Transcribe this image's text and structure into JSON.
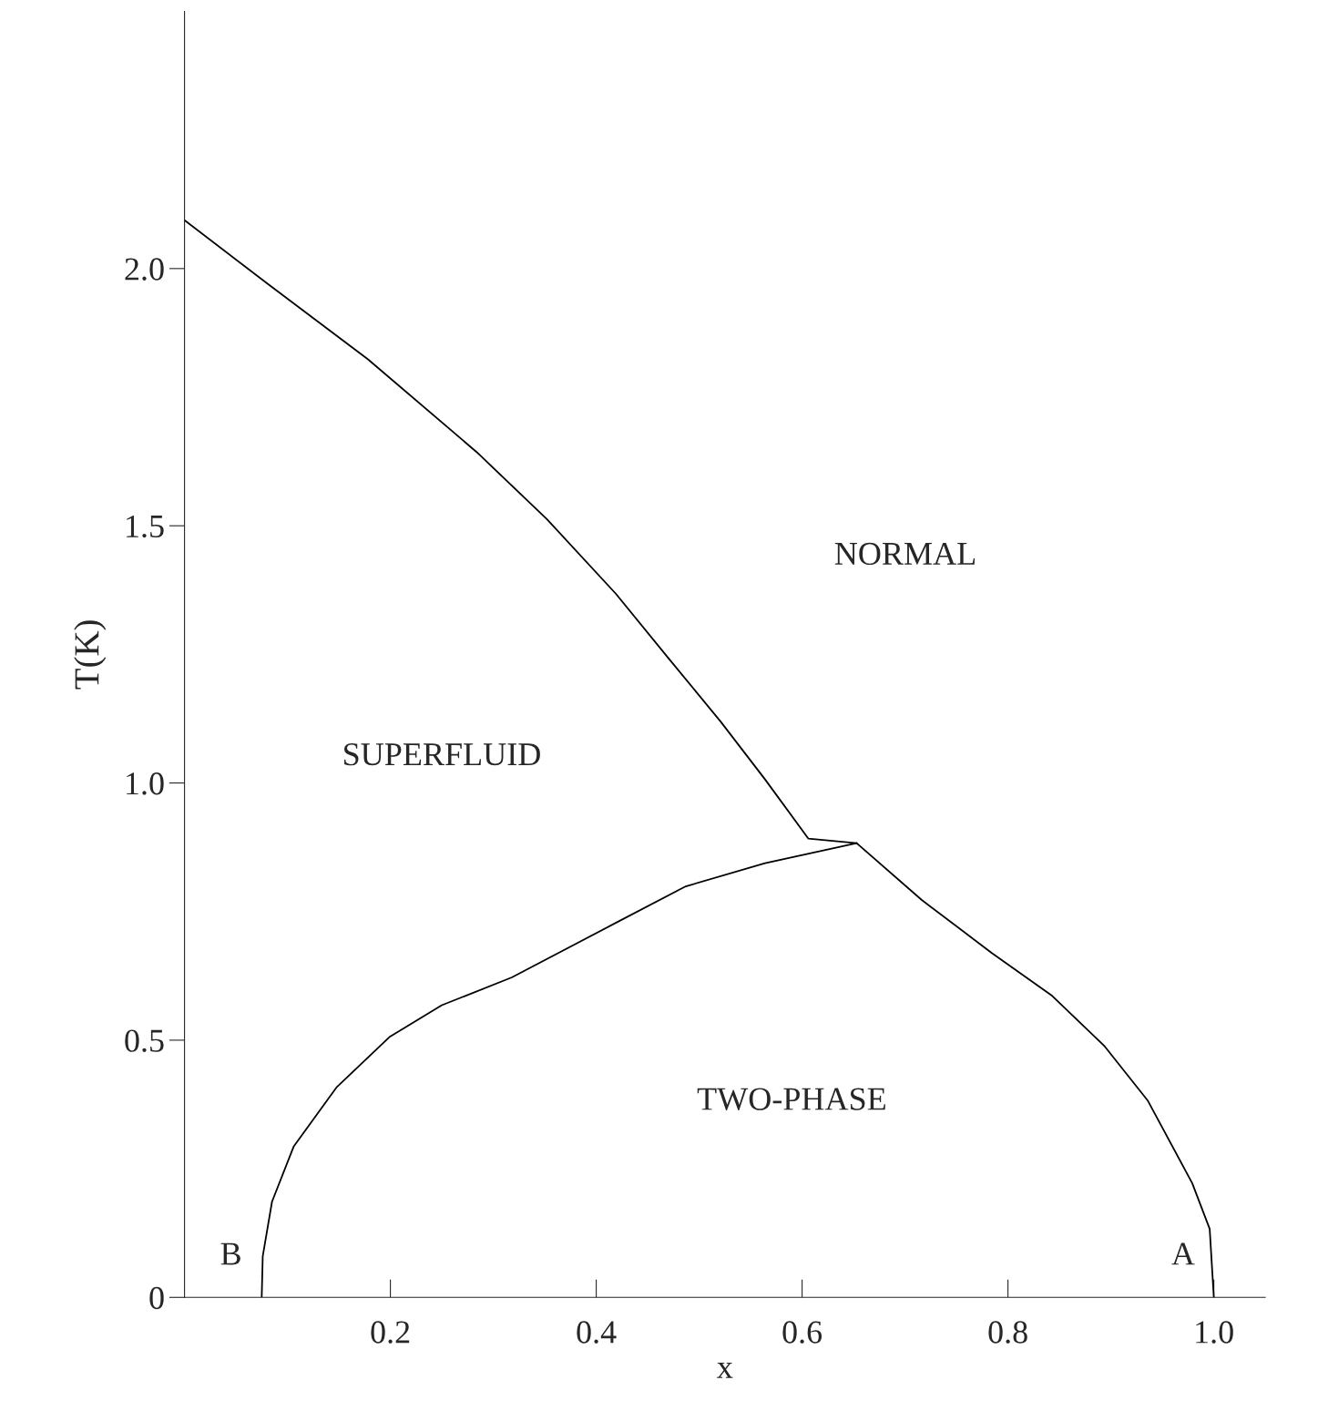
{
  "chart_data": {
    "type": "line",
    "xlabel": "x",
    "ylabel": "T(K)",
    "xlim": [
      0,
      1.05
    ],
    "ylim": [
      0,
      2.5
    ],
    "xticks": [
      {
        "value": 0.2,
        "label": "0.2"
      },
      {
        "value": 0.4,
        "label": "0.4"
      },
      {
        "value": 0.6,
        "label": "0.6"
      },
      {
        "value": 0.8,
        "label": "0.8"
      },
      {
        "value": 1.0,
        "label": "1.0"
      }
    ],
    "yticks": [
      0,
      {
        "value": 0.5,
        "label": "0.5"
      },
      {
        "value": 1.0,
        "label": "1.0"
      },
      {
        "value": 1.5,
        "label": "1.5"
      },
      {
        "value": 2.0,
        "label": "2.0"
      }
    ],
    "grid": false,
    "legend": false,
    "marker": "none",
    "line_style": "solid",
    "series": [
      {
        "color": "#000000",
        "x": [
          0,
          0.081,
          0.178,
          0.284,
          0.352,
          0.419,
          0.47,
          0.521,
          0.564,
          0.606,
          0.653
        ],
        "values": [
          2.094,
          1.97,
          1.824,
          1.643,
          1.513,
          1.368,
          1.243,
          1.119,
          1.007,
          0.892,
          0.883
        ]
      },
      {
        "color": "#000000",
        "x": [
          0.653,
          0.716,
          0.784,
          0.843,
          0.894,
          0.936,
          0.979,
          0.996,
          1.0
        ],
        "values": [
          0.883,
          0.773,
          0.67,
          0.586,
          0.488,
          0.382,
          0.222,
          0.133,
          0
        ]
      },
      {
        "color": "#000000",
        "x": [
          0.653,
          0.564,
          0.487,
          0.419,
          0.318,
          0.25,
          0.199,
          0.148,
          0.106,
          0.085,
          0.076,
          0.075
        ],
        "values": [
          0.883,
          0.844,
          0.799,
          0.728,
          0.622,
          0.568,
          0.506,
          0.409,
          0.293,
          0.186,
          0.08,
          0
        ]
      }
    ],
    "annotations": [
      "NORMAL",
      "SUPERFLUID",
      "TWO-PHASE",
      "B",
      "A"
    ]
  }
}
